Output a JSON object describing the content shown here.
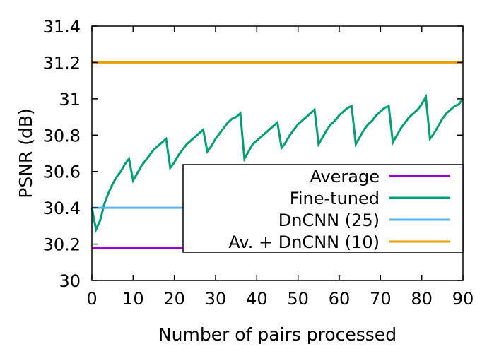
{
  "chart_data": {
    "type": "line",
    "xlabel": "Number of pairs processed",
    "ylabel": "PSNR (dB)",
    "xlim": [
      0,
      90
    ],
    "ylim": [
      30,
      31.4
    ],
    "xticks": [
      "0",
      "10",
      "20",
      "30",
      "40",
      "50",
      "60",
      "70",
      "80",
      "90"
    ],
    "yticks": [
      "30",
      "30.2",
      "30.4",
      "30.6",
      "30.8",
      "31",
      "31.2",
      "31.4"
    ],
    "grid": false,
    "legend_position": "bottom-right",
    "series": [
      {
        "name": "Average",
        "color": "#9400d3",
        "x": [
          0,
          90
        ],
        "y": [
          30.18,
          30.18
        ]
      },
      {
        "name": "Fine-tuned",
        "color": "#009e73",
        "x": [
          0,
          1,
          2,
          3,
          4,
          5,
          6,
          7,
          8,
          9,
          10,
          11,
          12,
          13,
          14,
          15,
          16,
          17,
          18,
          19,
          20,
          21,
          22,
          23,
          24,
          25,
          26,
          27,
          28,
          29,
          30,
          31,
          32,
          33,
          34,
          35,
          36,
          37,
          38,
          39,
          40,
          41,
          42,
          43,
          44,
          45,
          46,
          47,
          48,
          49,
          50,
          51,
          52,
          53,
          54,
          55,
          56,
          57,
          58,
          59,
          60,
          61,
          62,
          63,
          64,
          65,
          66,
          67,
          68,
          69,
          70,
          71,
          72,
          73,
          74,
          75,
          76,
          77,
          78,
          79,
          80,
          81,
          82,
          83,
          84,
          85,
          86,
          87,
          88,
          89,
          90
        ],
        "y": [
          30.4,
          30.28,
          30.33,
          30.42,
          30.48,
          30.53,
          30.57,
          30.6,
          30.64,
          30.67,
          30.55,
          30.59,
          30.63,
          30.66,
          30.69,
          30.72,
          30.74,
          30.76,
          30.78,
          30.62,
          30.65,
          30.69,
          30.72,
          30.75,
          30.77,
          30.79,
          30.81,
          30.83,
          30.71,
          30.74,
          30.78,
          30.81,
          30.84,
          30.87,
          30.89,
          30.9,
          30.92,
          30.67,
          30.71,
          30.75,
          30.77,
          30.79,
          30.81,
          30.83,
          30.85,
          30.87,
          30.73,
          30.76,
          30.8,
          30.83,
          30.86,
          30.88,
          30.9,
          30.92,
          30.94,
          30.75,
          30.79,
          30.83,
          30.86,
          30.88,
          30.91,
          30.93,
          30.95,
          30.96,
          30.75,
          30.79,
          30.83,
          30.86,
          30.88,
          30.91,
          30.93,
          30.95,
          30.96,
          30.76,
          30.8,
          30.84,
          30.87,
          30.9,
          30.92,
          30.94,
          30.97,
          31.01,
          30.78,
          30.81,
          30.85,
          30.89,
          30.92,
          30.94,
          30.96,
          30.97,
          31.0
        ]
      },
      {
        "name": "DnCNN (25)",
        "color": "#56b4e9",
        "x": [
          0,
          90
        ],
        "y": [
          30.4,
          30.4
        ]
      },
      {
        "name": "Av. + DnCNN (10)",
        "color": "#e69f00",
        "x": [
          0,
          90
        ],
        "y": [
          31.2,
          31.2
        ]
      }
    ]
  }
}
